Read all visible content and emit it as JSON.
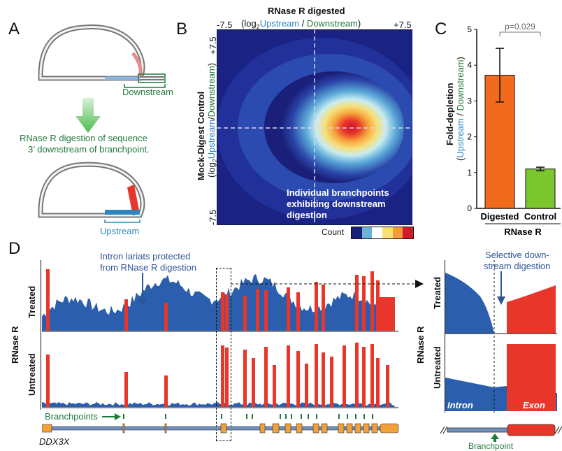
{
  "panel_a": {
    "label": "A",
    "downstream_label": "Downstream",
    "caption_line1": "RNase R digestion of sequence",
    "caption_line2": "3’ downstream of branchpoint.",
    "upstream_label": "Upstream",
    "colors": {
      "green": "#1f7a3a",
      "blue": "#2e86c1",
      "arrow": "#5cc05c"
    }
  },
  "panel_b": {
    "label": "B",
    "title": "RNase R digested",
    "top_axis_prefix": "(log",
    "top_axis_sub": "2",
    "top_axis_up": "Upstream",
    "top_axis_slash": " / ",
    "top_axis_down": "Downstream",
    "top_axis_suffix": ")",
    "tick_left": "-7.5",
    "tick_right": "+7.5",
    "left_axis_title": "Mock-Digest Control",
    "left_axis_prefix": "(log",
    "left_axis_sub": "2",
    "left_axis_up": "Upstream",
    "left_axis_slash": "/",
    "left_axis_down": "Downstream",
    "left_axis_suffix": ")",
    "tick_top": "+7.5",
    "tick_bottom": "-7.5",
    "annotation_line1": "Individual branchpoints",
    "annotation_line2": "exhibiting downstream",
    "annotation_line3": "digestion",
    "count_label": "Count",
    "colorbar": [
      "#1a1f7a",
      "#6db3d6",
      "#ffffff",
      "#f7e07a",
      "#f39a3a",
      "#d01c2a"
    ]
  },
  "panel_c": {
    "label": "C",
    "pvalue": "p=0.029",
    "ylabel_main": "Fold-depletion",
    "ylabel_up": "Upstream",
    "ylabel_slash": " / ",
    "ylabel_down": "Downstream",
    "group_label": "RNase R",
    "chart_data": {
      "type": "bar",
      "categories": [
        "Digested",
        "Control"
      ],
      "values": [
        3.72,
        1.1
      ],
      "errors": [
        0.75,
        0.05
      ],
      "ylim": [
        0,
        5
      ],
      "yticks": [
        "0",
        "1",
        "2",
        "3",
        "4",
        "5"
      ],
      "colors": [
        "#f26b1d",
        "#7bc62d"
      ]
    }
  },
  "panel_d": {
    "label": "D",
    "left_group_label": "RNase R",
    "treated_label": "Treated",
    "untreated_label": "Untreated",
    "lariat_note_line1": "Intron lariats protected",
    "lariat_note_line2": "from RNase R digestion",
    "branchpoints_label": "Branchpoints",
    "gene_name": "DDX3X",
    "zoom_group_label": "RNase R",
    "zoom_treated_label": "Treated",
    "zoom_untreated_label": "Untreated",
    "zoom_note_line1": "Selective down-",
    "zoom_note_line2": "stream digestion",
    "intron_label": "Intron",
    "exon_label": "Exon",
    "branchpoint_label": "Branchpoint",
    "colors": {
      "blue": "#2b5fad",
      "red": "#e8372a",
      "exon": "#f2a03a",
      "gene_line": "#4a6fa5"
    }
  }
}
